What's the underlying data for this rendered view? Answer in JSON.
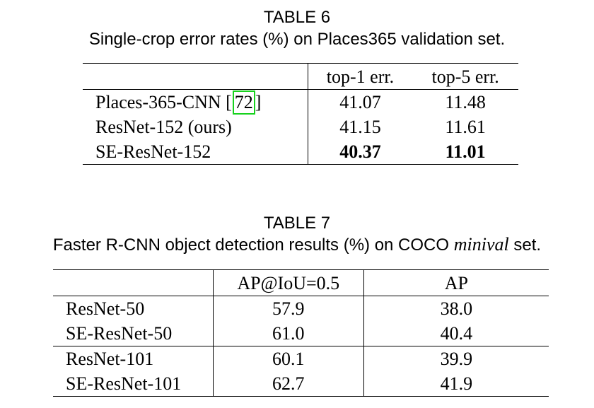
{
  "table6": {
    "label": "TABLE 6",
    "caption": "Single-crop error rates (%) on Places365 validation set.",
    "headers": [
      "",
      "top-1 err.",
      "top-5 err."
    ],
    "rows": [
      {
        "name": "Places-365-CNN [",
        "ref": "72",
        "ref_suffix": "]",
        "top1": "41.07",
        "top5": "11.48"
      },
      {
        "name": "ResNet-152 (ours)",
        "top1": "41.15",
        "top5": "11.61"
      },
      {
        "name": "SE-ResNet-152",
        "top1": "40.37",
        "top5": "11.01"
      }
    ],
    "highlight_color": "#17d21d"
  },
  "table7": {
    "label": "TABLE 7",
    "caption_pre": "Faster R-CNN object detection results (%) on COCO ",
    "caption_italic": "minival",
    "caption_post": " set.",
    "headers": [
      "",
      "AP@IoU=0.5",
      "AP"
    ],
    "rows": [
      {
        "name": "ResNet-50",
        "ap50": "57.9",
        "ap": "38.0"
      },
      {
        "name": "SE-ResNet-50",
        "ap50": "61.0",
        "ap": "40.4"
      },
      {
        "name": "ResNet-101",
        "ap50": "60.1",
        "ap": "39.9"
      },
      {
        "name": "SE-ResNet-101",
        "ap50": "62.7",
        "ap": "41.9"
      }
    ]
  }
}
